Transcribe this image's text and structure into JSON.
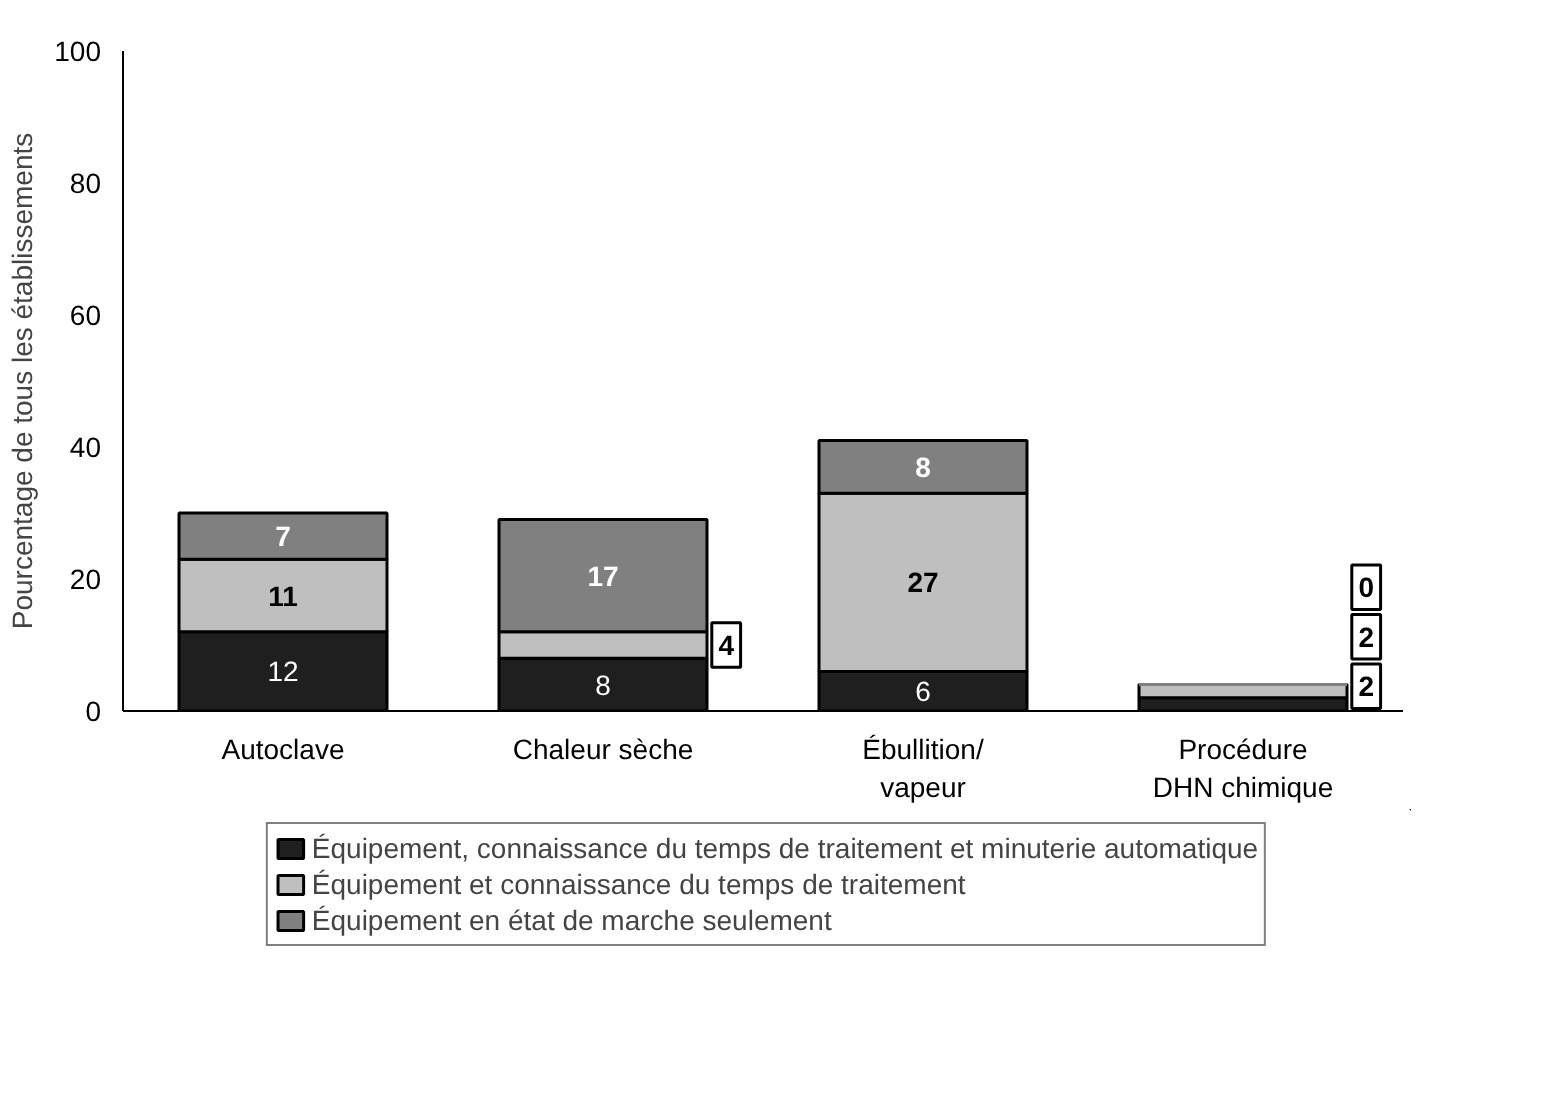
{
  "chart_data": {
    "type": "bar",
    "stacked": true,
    "ylabel": "Pourcentage de tous les établissements",
    "categories": [
      "Autoclave",
      "Chaleur sèche",
      "Ébullition/\nvapeur",
      "Procédure\nDHN chimique"
    ],
    "series": [
      {
        "name": "Équipement, connaissance du temps de traitement et minuterie automatique",
        "color": "#1f1f1f",
        "values": [
          12,
          8,
          6,
          2
        ]
      },
      {
        "name": "Équipement et connaissance du temps de traitement",
        "color": "#bfbfbf",
        "values": [
          11,
          4,
          27,
          2
        ]
      },
      {
        "name": "Équipement en état de marche seulement",
        "color": "#808080",
        "values": [
          7,
          17,
          8,
          0
        ]
      }
    ],
    "ylim": [
      0,
      100
    ],
    "yticks": [
      0,
      20,
      40,
      60,
      80,
      100
    ],
    "data_labels": true,
    "grid": false,
    "legend": "bottom"
  }
}
